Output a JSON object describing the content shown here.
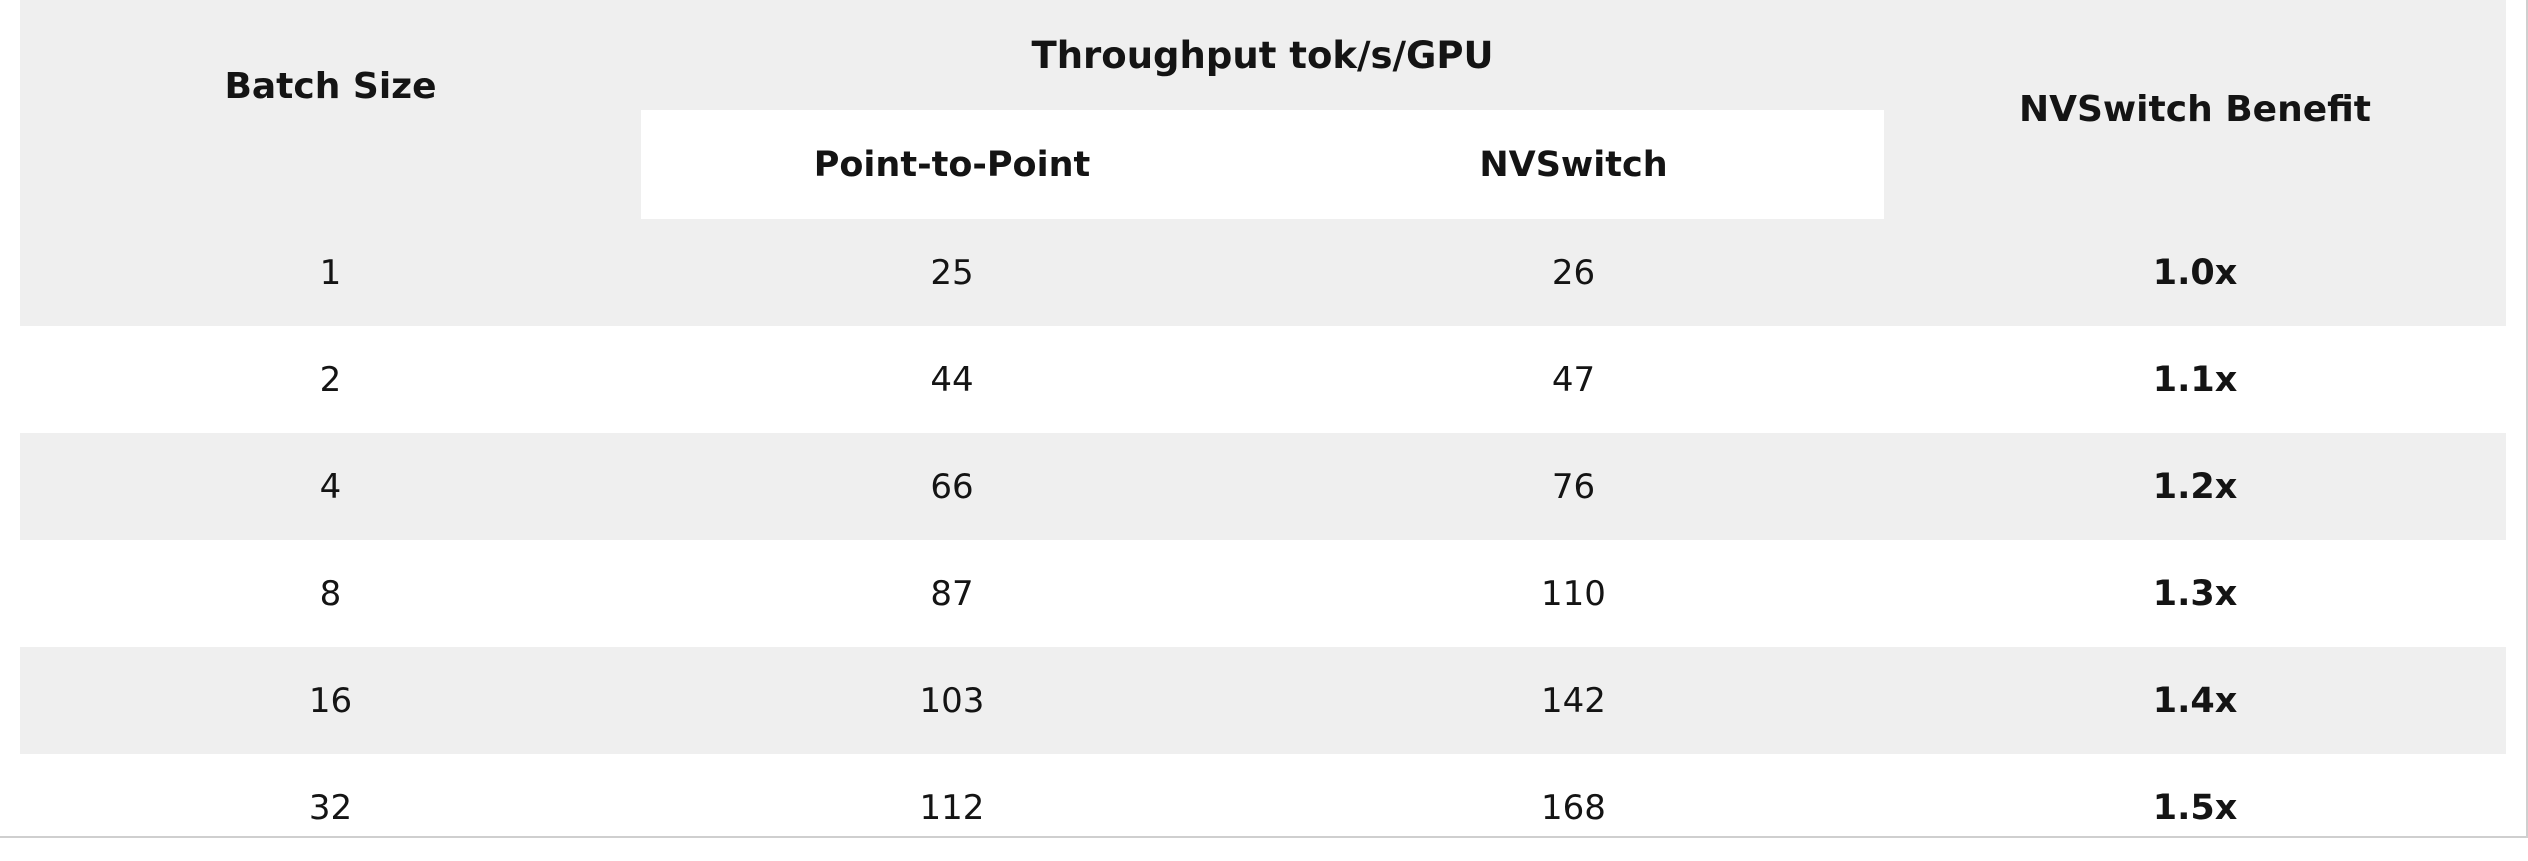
{
  "table": {
    "headers": {
      "batch_size": "Batch Size",
      "group": "Throughput tok/s/GPU",
      "point_to_point": "Point-to-Point",
      "nvswitch": "NVSwitch",
      "benefit": "NVSwitch Benefit"
    },
    "rows": [
      {
        "batch": "1",
        "p2p": "25",
        "nvswitch": "26",
        "benefit": "1.0x"
      },
      {
        "batch": "2",
        "p2p": "44",
        "nvswitch": "47",
        "benefit": "1.1x"
      },
      {
        "batch": "4",
        "p2p": "66",
        "nvswitch": "76",
        "benefit": "1.2x"
      },
      {
        "batch": "8",
        "p2p": "87",
        "nvswitch": "110",
        "benefit": "1.3x"
      },
      {
        "batch": "16",
        "p2p": "103",
        "nvswitch": "142",
        "benefit": "1.4x"
      },
      {
        "batch": "32",
        "p2p": "112",
        "nvswitch": "168",
        "benefit": "1.5x"
      }
    ]
  },
  "colors": {
    "shade": "#efefef",
    "text": "#141414"
  }
}
